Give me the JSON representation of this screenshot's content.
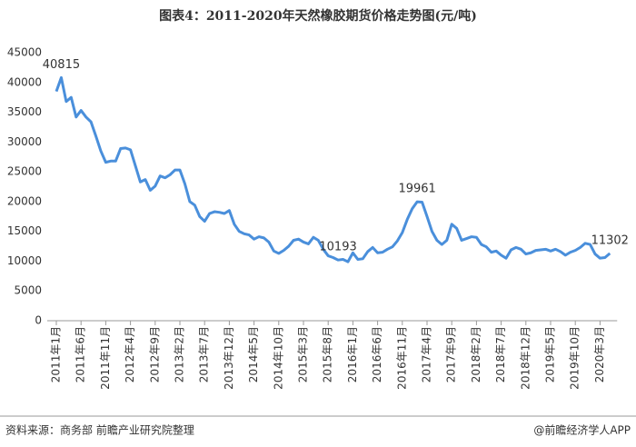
{
  "chart_data": {
    "type": "line",
    "title": "图表4：2011-2020年天然橡胶期货价格走势图(元/吨)",
    "source": "资料来源：商务部 前瞻产业研究院整理",
    "credit": "@前瞻经济学人APP",
    "categories": [
      "2011年1月",
      null,
      null,
      null,
      null,
      "2011年6月",
      null,
      null,
      null,
      null,
      "2011年11月",
      null,
      null,
      null,
      null,
      "2012年4月",
      null,
      null,
      null,
      null,
      "2012年9月",
      null,
      null,
      null,
      null,
      "2013年2月",
      null,
      null,
      null,
      null,
      "2013年7月",
      null,
      null,
      null,
      null,
      "2013年12月",
      null,
      null,
      null,
      null,
      "2014年5月",
      null,
      null,
      null,
      null,
      "2014年10月",
      null,
      null,
      null,
      null,
      "2015年3月",
      null,
      null,
      null,
      null,
      "2015年8月",
      null,
      null,
      null,
      null,
      "2016年1月",
      null,
      null,
      null,
      null,
      "2016年6月",
      null,
      null,
      null,
      null,
      "2016年11月",
      null,
      null,
      null,
      null,
      "2017年4月",
      null,
      null,
      null,
      null,
      "2017年9月",
      null,
      null,
      null,
      null,
      "2018年2月",
      null,
      null,
      null,
      null,
      "2018年7月",
      null,
      null,
      null,
      null,
      "2018年12月",
      null,
      null,
      null,
      null,
      "2019年5月",
      null,
      null,
      null,
      null,
      "2019年10月",
      null,
      null,
      null,
      null,
      "2020年3月",
      null,
      null
    ],
    "series": [
      {
        "color": "#4a8fdb",
        "values": [
          38500,
          40815,
          36800,
          37500,
          34200,
          35300,
          34200,
          33400,
          31000,
          28500,
          26600,
          26800,
          26800,
          28900,
          29000,
          28700,
          26000,
          23300,
          23700,
          21900,
          22600,
          24300,
          24000,
          24500,
          25300,
          25300,
          23000,
          20000,
          19400,
          17500,
          16700,
          18000,
          18300,
          18200,
          18000,
          18500,
          16200,
          15000,
          14600,
          14400,
          13700,
          14100,
          13900,
          13200,
          11700,
          11300,
          11800,
          12500,
          13500,
          13700,
          13200,
          12900,
          14000,
          13500,
          12000,
          10900,
          10600,
          10193,
          10300,
          9900,
          11400,
          10300,
          10400,
          11600,
          12300,
          11400,
          11500,
          12000,
          12400,
          13400,
          14800,
          17000,
          18800,
          19961,
          19900,
          17500,
          15000,
          13500,
          12800,
          13500,
          16200,
          15500,
          13500,
          13800,
          14100,
          14000,
          12800,
          12400,
          11500,
          11700,
          11000,
          10500,
          11900,
          12300,
          12000,
          11200,
          11400,
          11800,
          11900,
          12000,
          11700,
          12000,
          11600,
          11000,
          11500,
          11800,
          12300,
          13000,
          12800,
          11200,
          10500,
          10600,
          11302
        ]
      }
    ],
    "labeled_points": [
      1,
      57,
      73,
      112
    ],
    "ylim": [
      0,
      45000
    ],
    "yticks": [
      0,
      5000,
      10000,
      15000,
      20000,
      25000,
      30000,
      35000,
      40000,
      45000
    ]
  }
}
